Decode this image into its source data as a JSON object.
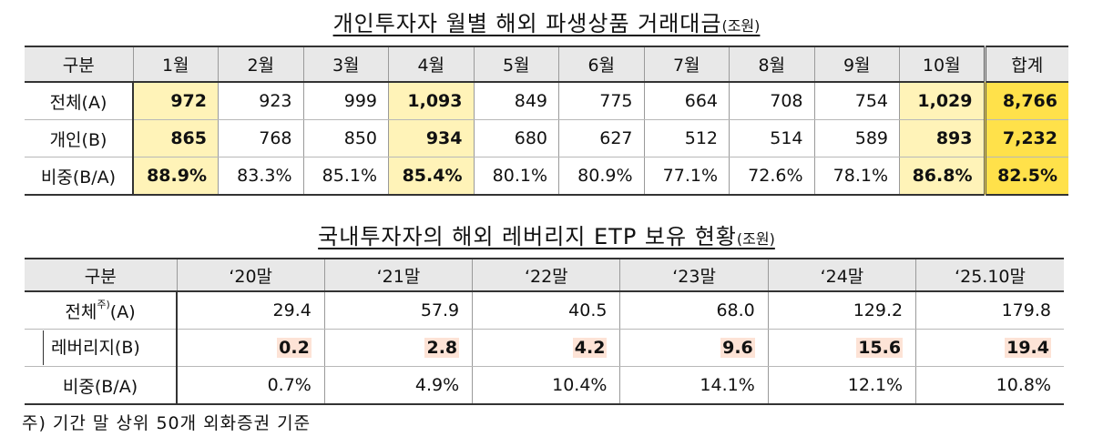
{
  "table1": {
    "title": "개인투자자 월별 해외 파생상품 거래대금",
    "unit": "(조원)",
    "header": [
      "구분",
      "1월",
      "2월",
      "3월",
      "4월",
      "5월",
      "6월",
      "7월",
      "8월",
      "9월",
      "10월",
      "합계"
    ],
    "rows": [
      {
        "label": "전체(A)",
        "cells": [
          "972",
          "923",
          "999",
          "1,093",
          "849",
          "775",
          "664",
          "708",
          "754",
          "1,029",
          "8,766"
        ]
      },
      {
        "label": "개인(B)",
        "cells": [
          "865",
          "768",
          "850",
          "934",
          "680",
          "627",
          "512",
          "514",
          "589",
          "893",
          "7,232"
        ]
      },
      {
        "label": "비중(B/A)",
        "cells": [
          "88.9%",
          "83.3%",
          "85.1%",
          "85.4%",
          "80.1%",
          "80.9%",
          "77.1%",
          "72.6%",
          "78.1%",
          "86.8%",
          "82.5%"
        ]
      }
    ],
    "highlight_color": "#fff3b8",
    "total_highlight_color": "#ffe14a"
  },
  "table2": {
    "title": "국내투자자의 해외 레버리지 ETP 보유 현황",
    "unit": "(조원)",
    "header": [
      "구분",
      "‘20말",
      "‘21말",
      "‘22말",
      "‘23말",
      "‘24말",
      "‘25.10말"
    ],
    "rows": [
      {
        "label": "전체",
        "label_sup": "주)",
        "label_suffix": "(A)",
        "cells": [
          "29.4",
          "57.9",
          "40.5",
          "68.0",
          "129.2",
          "179.8"
        ]
      },
      {
        "label": "레버리지(B)",
        "cells": [
          "0.2",
          "2.8",
          "4.2",
          "9.6",
          "15.6",
          "19.4"
        ]
      },
      {
        "label": "비중(B/A)",
        "cells": [
          "0.7%",
          "4.9%",
          "10.4%",
          "14.1%",
          "12.1%",
          "10.8%"
        ]
      }
    ],
    "highlight_color": "#fde3d6"
  },
  "footnote": "주) 기간 말 상위 50개 외화증권 기준"
}
